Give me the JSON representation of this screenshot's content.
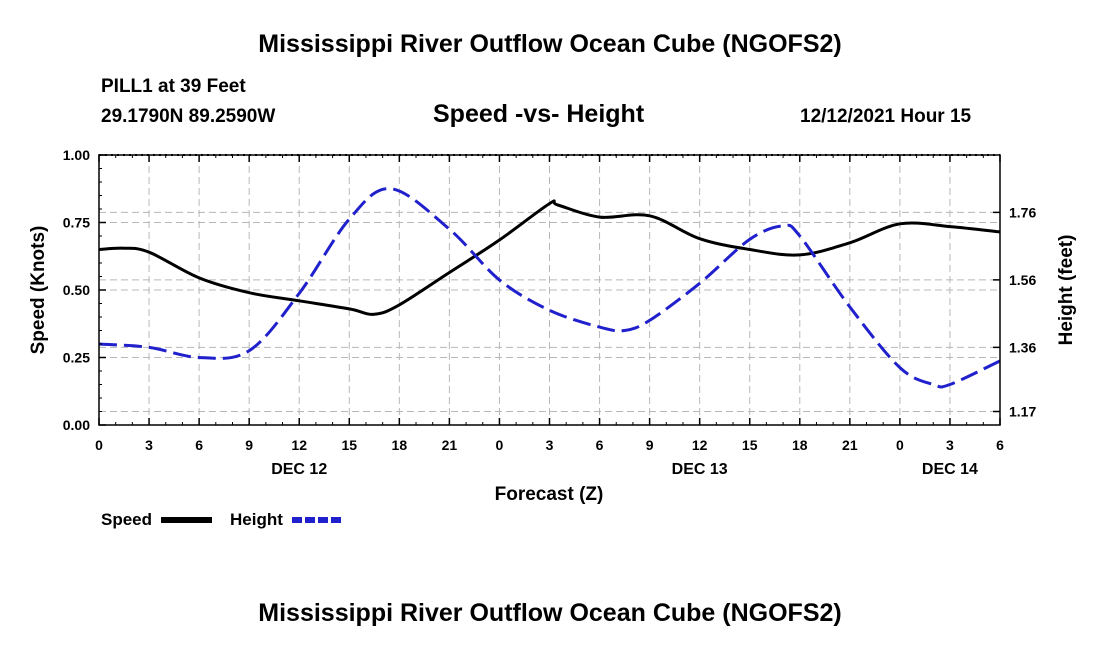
{
  "header": {
    "title": "Mississippi River Outflow Ocean Cube (NGOFS2)",
    "footer_title": "Mississippi River Outflow Ocean Cube (NGOFS2)",
    "station": "PILL1 at 39 Feet",
    "coords": "29.1790N  89.2590W",
    "subtitle": "Speed -vs- Height",
    "timestamp": "12/12/2021 Hour 15"
  },
  "chart_data": {
    "type": "line",
    "title": "Speed -vs- Height",
    "xlabel": "Forecast (Z)",
    "ylabel": "Speed (Knots)",
    "y2label": "Height (feet)",
    "xlim": [
      0,
      54
    ],
    "ylim": [
      0,
      1
    ],
    "y2lim": [
      1.13,
      1.93
    ],
    "grid": true,
    "x_ticks": [
      {
        "x": 0,
        "label": "0"
      },
      {
        "x": 3,
        "label": "3"
      },
      {
        "x": 6,
        "label": "6"
      },
      {
        "x": 9,
        "label": "9"
      },
      {
        "x": 12,
        "label": "12"
      },
      {
        "x": 15,
        "label": "15"
      },
      {
        "x": 18,
        "label": "18"
      },
      {
        "x": 21,
        "label": "21"
      },
      {
        "x": 24,
        "label": "0"
      },
      {
        "x": 27,
        "label": "3"
      },
      {
        "x": 30,
        "label": "6"
      },
      {
        "x": 33,
        "label": "9"
      },
      {
        "x": 36,
        "label": "12"
      },
      {
        "x": 39,
        "label": "15"
      },
      {
        "x": 42,
        "label": "18"
      },
      {
        "x": 45,
        "label": "21"
      },
      {
        "x": 48,
        "label": "0"
      },
      {
        "x": 51,
        "label": "3"
      },
      {
        "x": 54,
        "label": "6"
      }
    ],
    "date_labels": [
      {
        "x": 12,
        "label": "DEC 12"
      },
      {
        "x": 36,
        "label": "DEC 13"
      },
      {
        "x": 51,
        "label": "DEC 14"
      }
    ],
    "y_ticks": [
      {
        "y": 0.0,
        "label": "0.00"
      },
      {
        "y": 0.25,
        "label": "0.25"
      },
      {
        "y": 0.5,
        "label": "0.50"
      },
      {
        "y": 0.75,
        "label": "0.75"
      },
      {
        "y": 1.0,
        "label": "1.00"
      }
    ],
    "y2_ticks": [
      {
        "y": 1.17,
        "label": "1.17"
      },
      {
        "y": 1.36,
        "label": "1.36"
      },
      {
        "y": 1.56,
        "label": "1.56"
      },
      {
        "y": 1.76,
        "label": "1.76"
      }
    ],
    "series": [
      {
        "name": "Speed",
        "axis": "left",
        "color": "#000000",
        "style": "solid",
        "x": [
          0,
          1.5,
          3,
          6,
          9,
          12,
          15,
          16.5,
          18,
          21,
          24,
          27,
          27.5,
          30,
          33,
          36,
          39,
          42,
          45,
          48,
          51,
          54
        ],
        "y": [
          0.65,
          0.655,
          0.64,
          0.545,
          0.49,
          0.46,
          0.43,
          0.41,
          0.445,
          0.565,
          0.685,
          0.82,
          0.815,
          0.77,
          0.775,
          0.69,
          0.65,
          0.63,
          0.675,
          0.745,
          0.735,
          0.715
        ]
      },
      {
        "name": "Height",
        "axis": "right",
        "color": "#2020cc",
        "style": "dashed",
        "x": [
          0,
          3,
          6,
          9,
          12,
          15,
          17.5,
          21,
          24,
          27,
          30,
          31.5,
          33,
          36,
          39,
          41,
          42,
          45,
          48,
          50,
          51,
          54
        ],
        "y": [
          1.37,
          1.36,
          1.33,
          1.35,
          1.52,
          1.74,
          1.83,
          1.71,
          1.56,
          1.47,
          1.42,
          1.41,
          1.44,
          1.55,
          1.68,
          1.72,
          1.69,
          1.48,
          1.3,
          1.25,
          1.25,
          1.32
        ]
      }
    ],
    "legend": [
      {
        "label": "Speed",
        "color": "#000000",
        "style": "solid"
      },
      {
        "label": "Height",
        "color": "#2020cc",
        "style": "dashed"
      }
    ]
  }
}
